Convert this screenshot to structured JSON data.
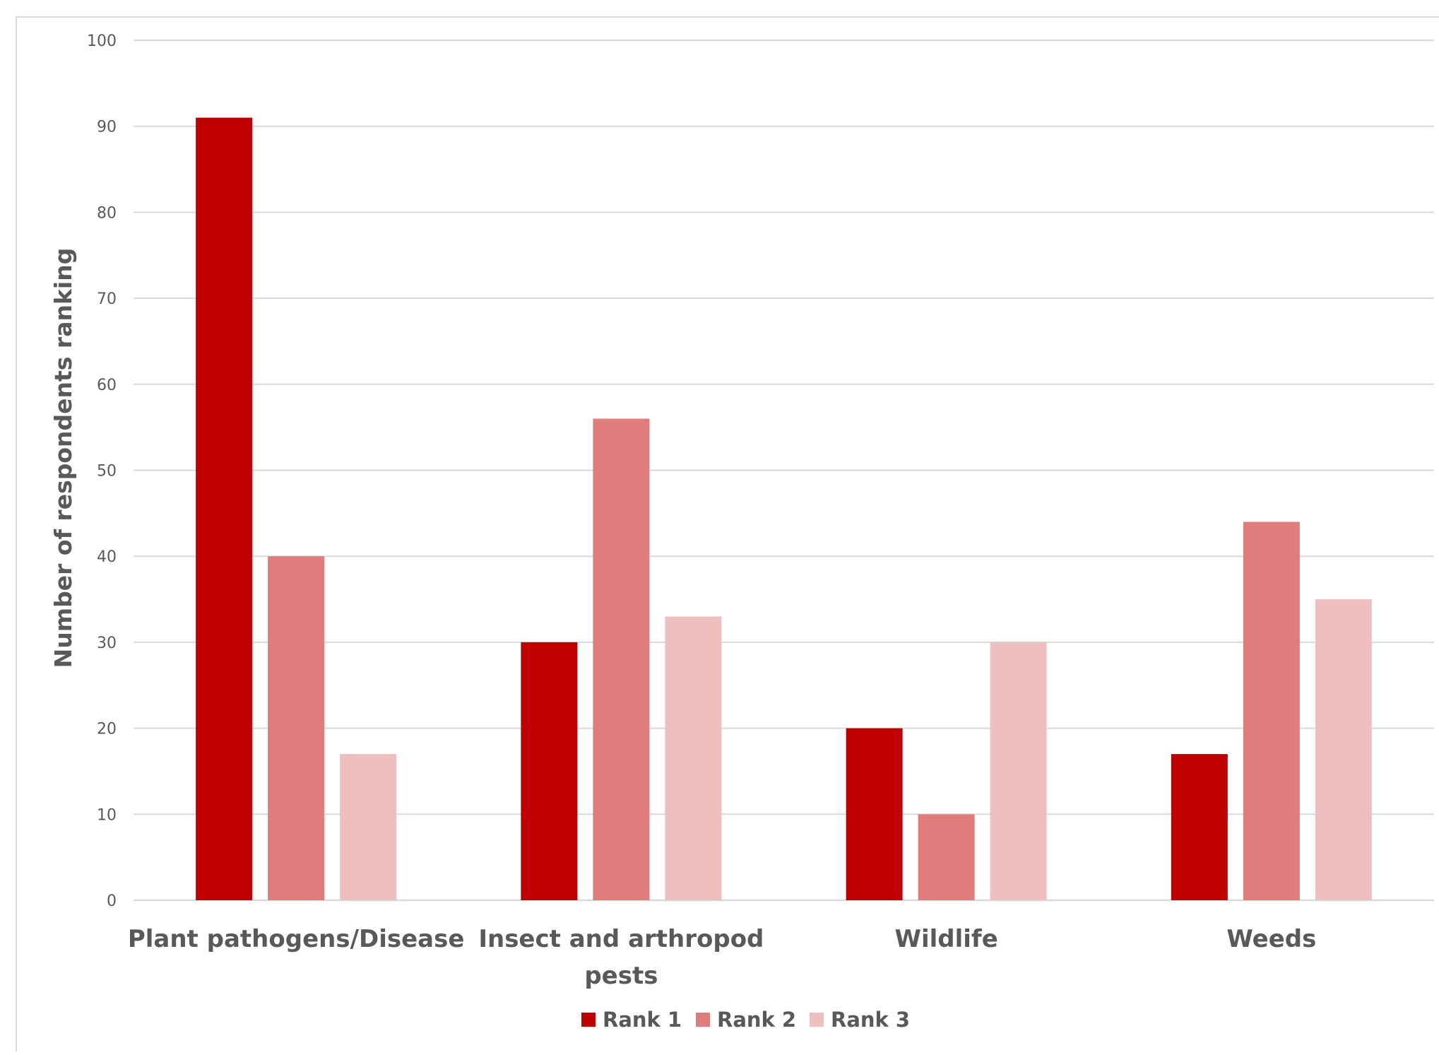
{
  "chart_data": {
    "type": "bar",
    "title": "",
    "xlabel": "",
    "ylabel": "Number of respondents ranking",
    "ylim": [
      0,
      100
    ],
    "yticks": [
      0,
      10,
      20,
      30,
      40,
      50,
      60,
      70,
      80,
      90,
      100
    ],
    "grid": true,
    "legend_position": "bottom",
    "categories": [
      [
        "Plant pathogens/Disease"
      ],
      [
        "Insect and arthropod",
        "pests"
      ],
      [
        "Wildlife"
      ],
      [
        "Weeds"
      ]
    ],
    "series": [
      {
        "name": "Rank 1",
        "color": "#c00000",
        "values": [
          91,
          30,
          20,
          17
        ]
      },
      {
        "name": "Rank 2",
        "color": "#e07c7c",
        "values": [
          40,
          56,
          10,
          44
        ]
      },
      {
        "name": "Rank 3",
        "color": "#efbfbf",
        "values": [
          17,
          33,
          30,
          35
        ]
      }
    ]
  }
}
